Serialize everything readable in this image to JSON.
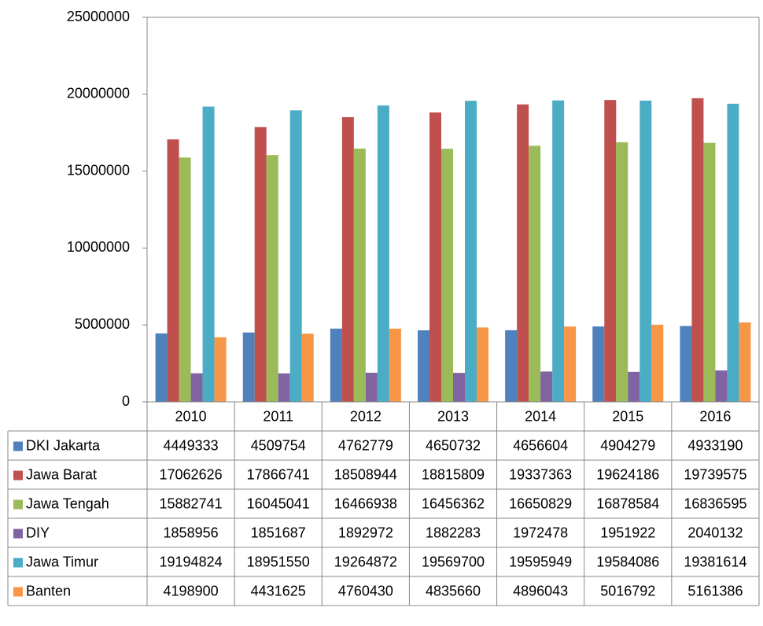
{
  "chart_data": {
    "type": "bar",
    "categories": [
      "2010",
      "2011",
      "2012",
      "2013",
      "2014",
      "2015",
      "2016"
    ],
    "series": [
      {
        "name": "DKI Jakarta",
        "color": "#4f81bd",
        "values": [
          4449333,
          4509754,
          4762779,
          4650732,
          4656604,
          4904279,
          4933190
        ]
      },
      {
        "name": "Jawa Barat",
        "color": "#c0504d",
        "values": [
          17062626,
          17866741,
          18508944,
          18815809,
          19337363,
          19624186,
          19739575
        ]
      },
      {
        "name": "Jawa Tengah",
        "color": "#9bbb59",
        "values": [
          15882741,
          16045041,
          16466938,
          16456362,
          16650829,
          16878584,
          16836595
        ]
      },
      {
        "name": "DIY",
        "color": "#8064a2",
        "values": [
          1858956,
          1851687,
          1892972,
          1882283,
          1972478,
          1951922,
          2040132
        ]
      },
      {
        "name": "Jawa Timur",
        "color": "#4bacc6",
        "values": [
          19194824,
          18951550,
          19264872,
          19569700,
          19595949,
          19584086,
          19381614
        ]
      },
      {
        "name": "Banten",
        "color": "#f79646",
        "values": [
          4198900,
          4431625,
          4760430,
          4835660,
          4896043,
          5016792,
          5161386
        ]
      }
    ],
    "ylim": [
      0,
      25000000
    ],
    "yticks": [
      0,
      5000000,
      10000000,
      15000000,
      20000000,
      25000000
    ]
  }
}
